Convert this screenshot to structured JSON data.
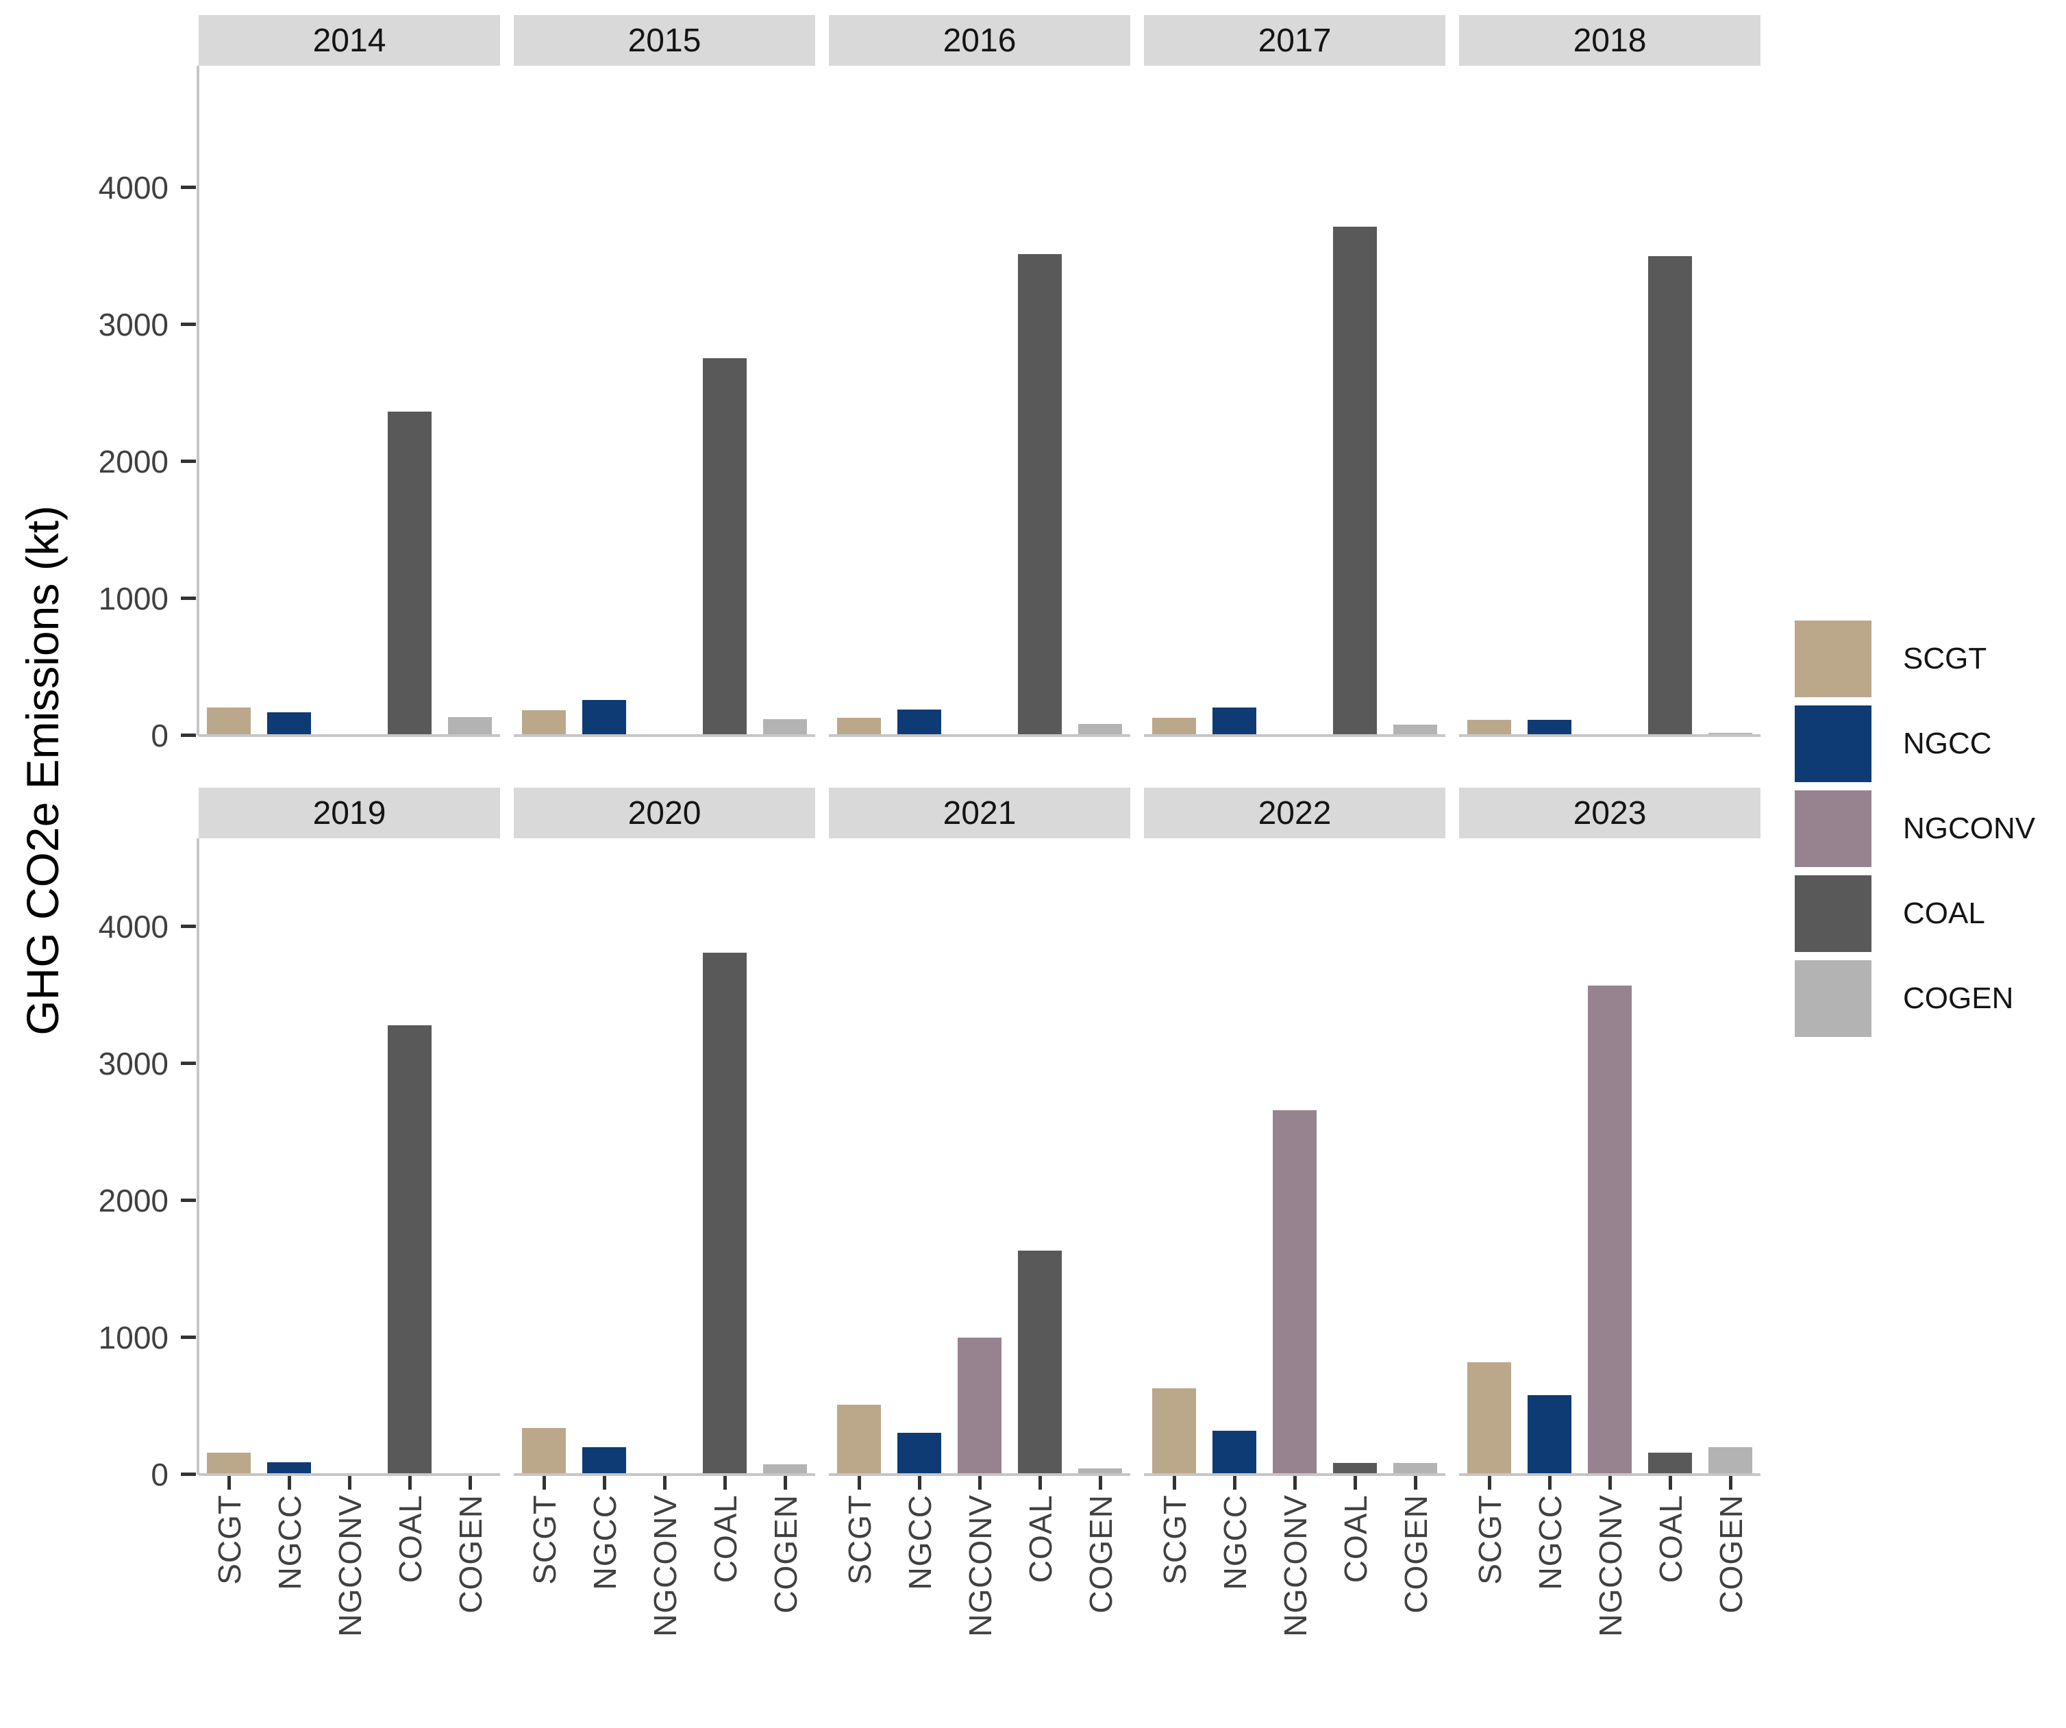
{
  "y_axis": {
    "title": "GHG CO2e Emissions (kt)",
    "tick_labels": [
      "0",
      "1000",
      "2000",
      "3000",
      "4000"
    ],
    "tick_values": [
      0,
      1000,
      2000,
      3000,
      4000
    ]
  },
  "legend": {
    "items": [
      {
        "label": "SCGT",
        "color": "#BBA78A"
      },
      {
        "label": "NGCC",
        "color": "#0E3B73"
      },
      {
        "label": "NGCONV",
        "color": "#97838F"
      },
      {
        "label": "COAL",
        "color": "#595959"
      },
      {
        "label": "COGEN",
        "color": "#B3B3B3"
      }
    ]
  },
  "ui_colors": {
    "strip_bg": "#D9D9D9",
    "axis_line": "#C6C6C6",
    "tick_mark": "#333333",
    "tick_text": "#404040",
    "strip_text": "#141414"
  },
  "chart_data": {
    "type": "bar",
    "facet_by": "year",
    "ylabel": "GHG CO2e Emissions (kt)",
    "ylim": [
      0,
      4000
    ],
    "grid": false,
    "legend_position": "right",
    "categories": [
      "SCGT",
      "NGCC",
      "NGCONV",
      "COAL",
      "COGEN"
    ],
    "series_colors": {
      "SCGT": "#BBA78A",
      "NGCC": "#0E3B73",
      "NGCONV": "#97838F",
      "COAL": "#595959",
      "COGEN": "#B3B3B3"
    },
    "facets": [
      {
        "year": "2014",
        "values": [
          205,
          170,
          0,
          2365,
          135
        ]
      },
      {
        "year": "2015",
        "values": [
          185,
          260,
          0,
          2755,
          120
        ]
      },
      {
        "year": "2016",
        "values": [
          130,
          190,
          0,
          3515,
          85
        ]
      },
      {
        "year": "2017",
        "values": [
          130,
          205,
          0,
          3715,
          80
        ]
      },
      {
        "year": "2018",
        "values": [
          115,
          115,
          0,
          3500,
          20
        ]
      },
      {
        "year": "2019",
        "values": [
          160,
          90,
          0,
          3280,
          0
        ]
      },
      {
        "year": "2020",
        "values": [
          340,
          200,
          0,
          3810,
          75
        ]
      },
      {
        "year": "2021",
        "values": [
          510,
          305,
          1000,
          1635,
          45
        ]
      },
      {
        "year": "2022",
        "values": [
          630,
          320,
          2660,
          85,
          85
        ]
      },
      {
        "year": "2023",
        "values": [
          820,
          580,
          3570,
          160,
          200
        ]
      }
    ]
  }
}
